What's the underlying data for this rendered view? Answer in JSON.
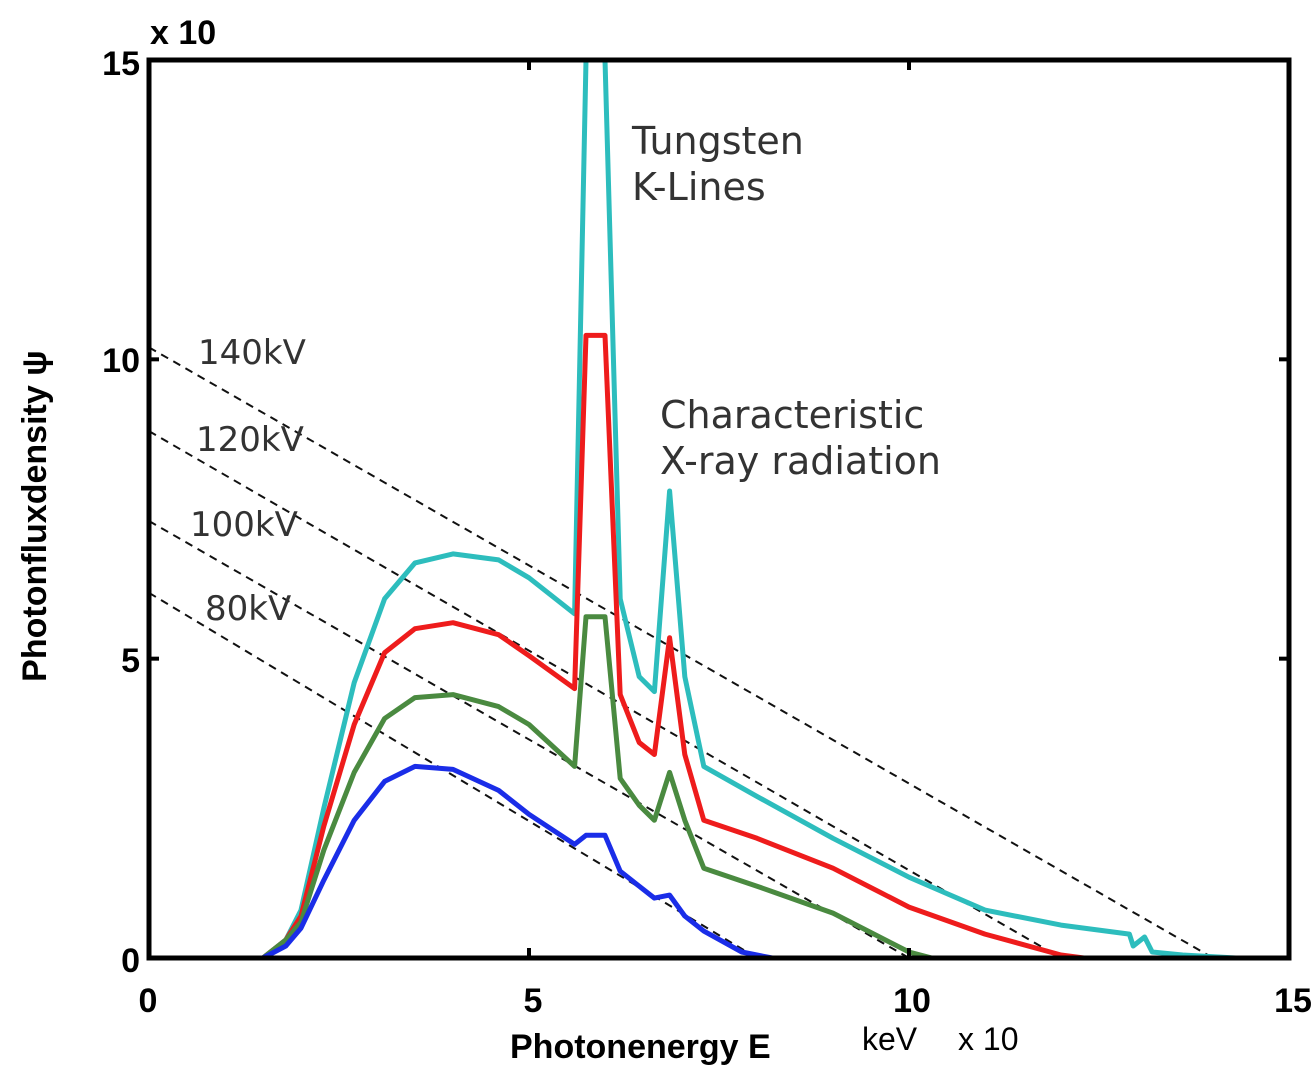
{
  "chart_data": {
    "type": "line",
    "xlabel": "Photonenergy E",
    "xlabel_unit": "keV",
    "x_multiplier": "x 10",
    "ylabel": "Photonfluxdensity ψ",
    "y_multiplier": "x 10",
    "xlim": [
      0,
      15
    ],
    "ylim": [
      0,
      15
    ],
    "x_ticks": [
      "0",
      "5",
      "10",
      "15"
    ],
    "y_ticks": [
      "0",
      "5",
      "10",
      "15"
    ],
    "grid": false,
    "legend": "none",
    "series": [
      {
        "color": "#2dbdbd",
        "x": [
          0,
          1.5,
          1.8,
          2.0,
          2.3,
          2.7,
          3.1,
          3.5,
          4.0,
          4.6,
          5.0,
          5.6,
          5.75,
          6.0,
          6.2,
          6.45,
          6.65,
          6.85,
          7.05,
          7.3,
          8.0,
          9.0,
          10.0,
          11.0,
          12.0,
          12.9,
          12.95,
          13.1,
          13.2,
          13.6,
          14.3
        ],
        "y": [
          0,
          0,
          0.3,
          0.8,
          2.5,
          4.6,
          6.0,
          6.6,
          6.75,
          6.65,
          6.35,
          5.75,
          15.0,
          15.0,
          6.0,
          4.7,
          4.45,
          7.8,
          4.7,
          3.2,
          2.7,
          2.0,
          1.35,
          0.8,
          0.55,
          0.4,
          0.2,
          0.35,
          0.1,
          0.05,
          0
        ]
      },
      {
        "color": "#ee1c1c",
        "x": [
          0,
          1.5,
          1.8,
          2.0,
          2.3,
          2.7,
          3.1,
          3.5,
          4.0,
          4.6,
          5.0,
          5.6,
          5.75,
          6.0,
          6.2,
          6.45,
          6.65,
          6.85,
          7.05,
          7.3,
          8.0,
          9.0,
          10.0,
          11.0,
          12.0,
          12.3
        ],
        "y": [
          0,
          0,
          0.3,
          0.7,
          2.2,
          3.9,
          5.1,
          5.5,
          5.6,
          5.4,
          5.05,
          4.5,
          10.4,
          10.4,
          4.4,
          3.6,
          3.4,
          5.35,
          3.4,
          2.3,
          2.0,
          1.5,
          0.85,
          0.4,
          0.05,
          0
        ]
      },
      {
        "color": "#4a8a40",
        "x": [
          0,
          1.5,
          1.8,
          2.0,
          2.3,
          2.7,
          3.1,
          3.5,
          4.0,
          4.6,
          5.0,
          5.6,
          5.75,
          6.0,
          6.2,
          6.45,
          6.65,
          6.85,
          7.05,
          7.3,
          8.0,
          9.0,
          10.0,
          10.3
        ],
        "y": [
          0,
          0,
          0.3,
          0.6,
          1.8,
          3.1,
          4.0,
          4.35,
          4.4,
          4.2,
          3.9,
          3.2,
          5.7,
          5.7,
          3.0,
          2.55,
          2.3,
          3.1,
          2.3,
          1.5,
          1.2,
          0.75,
          0.1,
          0
        ]
      },
      {
        "color": "#1a2de8",
        "x": [
          0,
          1.5,
          1.8,
          2.0,
          2.3,
          2.7,
          3.1,
          3.5,
          4.0,
          4.6,
          5.0,
          5.6,
          5.75,
          6.0,
          6.2,
          6.45,
          6.65,
          6.85,
          7.05,
          7.3,
          7.8,
          8.2
        ],
        "y": [
          0,
          0,
          0.2,
          0.5,
          1.3,
          2.3,
          2.95,
          3.2,
          3.15,
          2.8,
          2.4,
          1.9,
          2.05,
          2.05,
          1.45,
          1.2,
          1.0,
          1.05,
          0.7,
          0.45,
          0.1,
          0
        ]
      }
    ],
    "reference_lines": [
      {
        "label": "140kV",
        "x": [
          0,
          14.0
        ],
        "y": [
          10.2,
          0
        ]
      },
      {
        "label": "120kV",
        "x": [
          0,
          12.0
        ],
        "y": [
          8.8,
          0
        ]
      },
      {
        "label": "100kV",
        "x": [
          0,
          10.0
        ],
        "y": [
          7.3,
          0
        ]
      },
      {
        "label": "80kV",
        "x": [
          0,
          8.0
        ],
        "y": [
          6.1,
          0
        ]
      }
    ],
    "annotations": [
      {
        "lines": [
          "Tungsten",
          "K-Lines"
        ]
      },
      {
        "lines": [
          "Characteristic",
          "X-ray radiation"
        ]
      }
    ]
  }
}
